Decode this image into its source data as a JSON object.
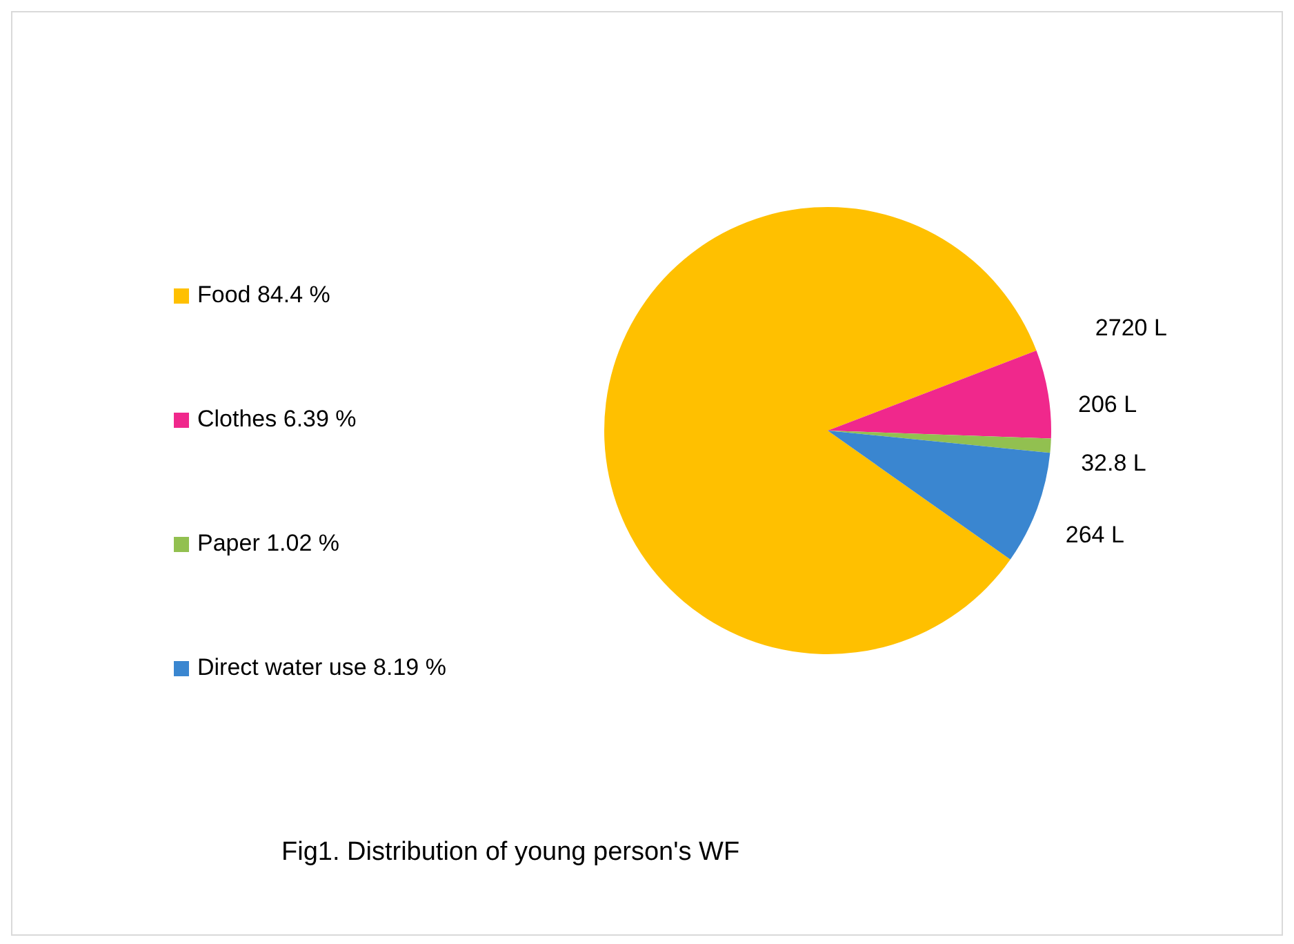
{
  "chart_data": {
    "type": "pie",
    "categories": [
      "Food 84.4 %",
      "Clothes 6.39 %",
      "Paper 1.02 %",
      "Direct water use 8.19 %"
    ],
    "values": [
      2720,
      206,
      32.8,
      264
    ],
    "colors": [
      "#ffc000",
      "#f0288c",
      "#92c050",
      "#3a86d0"
    ],
    "value_labels": [
      "2720 L",
      "206 L",
      "32.8 L",
      "264 L"
    ],
    "legend": "left",
    "annotations": [
      "Fig1. Distribution of young person's WF"
    ]
  }
}
